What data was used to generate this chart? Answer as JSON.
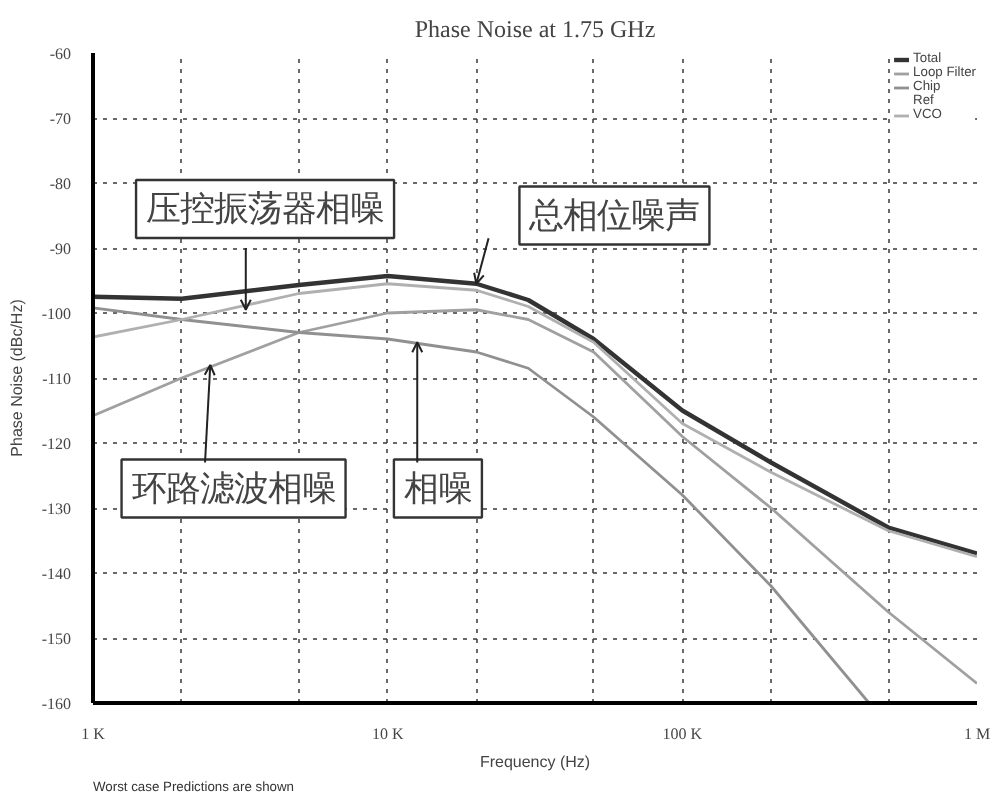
{
  "chart_data": {
    "type": "line",
    "title": "Phase Noise at 1.75 GHz",
    "xlabel": "Frequency (Hz)",
    "ylabel": "Phase Noise (dBc/Hz)",
    "log": "x",
    "xlim": [
      1000,
      1000000
    ],
    "xticks": [
      {
        "value": 1000,
        "label": "1 K"
      },
      {
        "value": 2000,
        "label": null
      },
      {
        "value": 5000,
        "label": null
      },
      {
        "value": 10000,
        "label": "10 K"
      },
      {
        "value": 20000,
        "label": null
      },
      {
        "value": 50000,
        "label": null
      },
      {
        "value": 100000,
        "label": "100 K"
      },
      {
        "value": 200000,
        "label": null
      },
      {
        "value": 500000,
        "label": null
      },
      {
        "value": 1000000,
        "label": "1 M"
      }
    ],
    "ylim": [
      -160,
      -60
    ],
    "yticks": [
      -60,
      -70,
      -80,
      -90,
      -100,
      -110,
      -120,
      -130,
      -140,
      -150,
      -160
    ],
    "grid": true,
    "legend": "top right",
    "line_style": "solid",
    "marker": "none",
    "series": [
      {
        "name": "Total",
        "color": "#333333",
        "x": [
          1000,
          2000,
          5000,
          10000,
          20000,
          30000,
          50000,
          100000,
          200000,
          500000,
          1000000
        ],
        "values": [
          -97.5,
          -97.8,
          -95.7,
          -94.3,
          -95.5,
          -98,
          -104,
          -115,
          -123,
          -133,
          -137
        ]
      },
      {
        "name": "Loop Filter",
        "color": "#a0a0a0",
        "x": [
          1000,
          2000,
          5000,
          10000,
          20000,
          30000,
          50000,
          100000,
          200000,
          500000,
          1000000
        ],
        "values": [
          -115.8,
          -110,
          -103,
          -100,
          -99.5,
          -101,
          -106,
          -119,
          -130,
          -146,
          -157
        ]
      },
      {
        "name": "Chip",
        "color": "#909090",
        "x": [
          1000,
          2000,
          5000,
          10000,
          20000,
          30000,
          50000,
          100000,
          200000,
          430000
        ],
        "values": [
          -99.2,
          -101,
          -103,
          -104,
          -106,
          -108.5,
          -116,
          -128,
          -142,
          -160
        ]
      },
      {
        "name": "Ref"
      },
      {
        "name": "VCO",
        "color": "#b0b0b0",
        "x": [
          1000,
          2000,
          5000,
          10000,
          20000,
          30000,
          50000,
          100000,
          200000,
          500000,
          1000000
        ],
        "values": [
          -103.7,
          -101,
          -97,
          -95.5,
          -96.5,
          -99,
          -104.5,
          -117,
          -124.5,
          -133.5,
          -137.5
        ]
      }
    ],
    "annotations": [
      {
        "text": "压控振荡器相噪",
        "x": 3300,
        "y": -99.5
      },
      {
        "text": "总相位噪声",
        "x": 20000,
        "y": -95.5
      },
      {
        "text": "环路滤波相噪",
        "x": 2500,
        "y": -108
      },
      {
        "text": "相噪",
        "x": 12600,
        "y": -104.5
      },
      "Worst case Predictions are shown"
    ]
  }
}
